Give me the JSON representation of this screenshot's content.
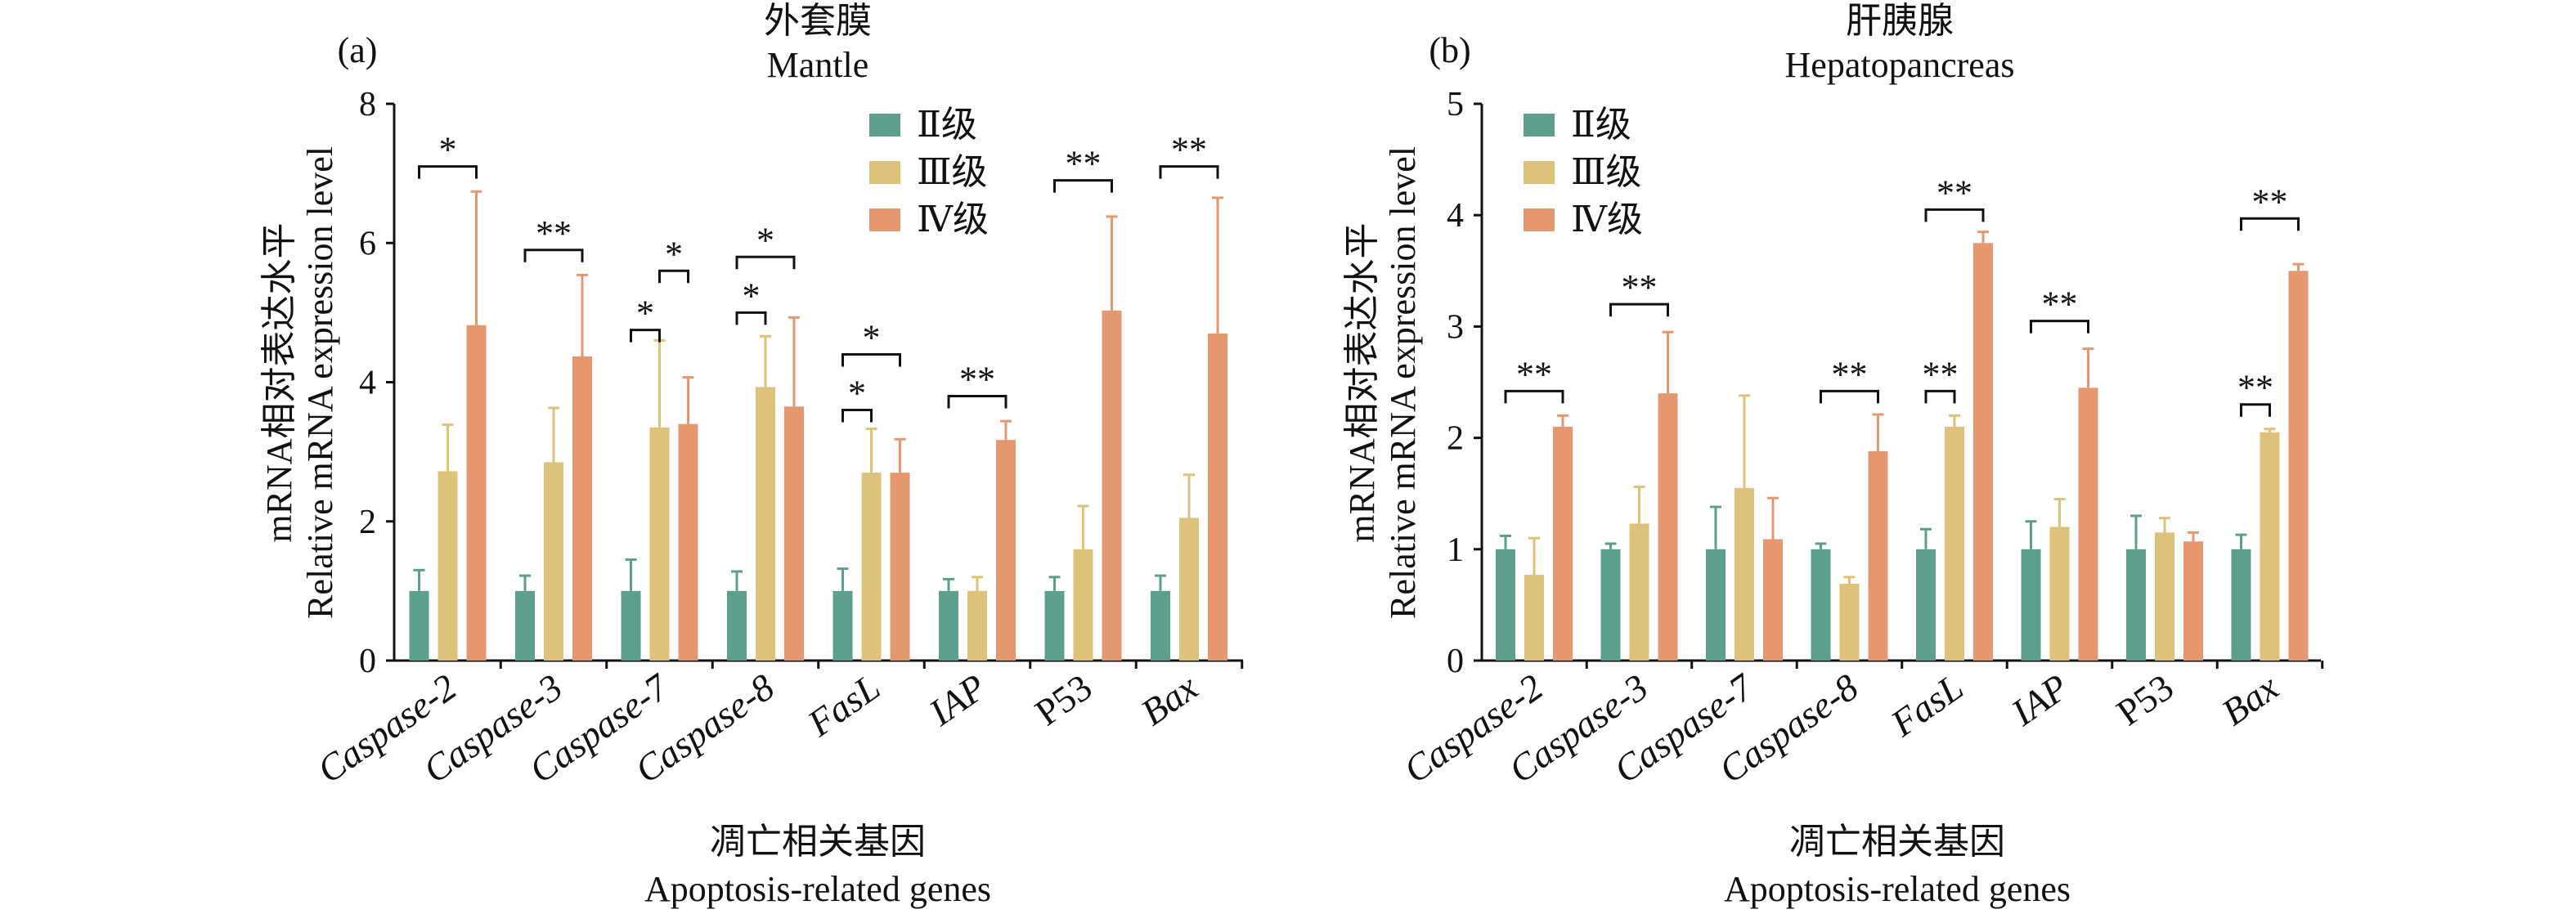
{
  "colors": {
    "grade2": "#5b9f8c",
    "grade3": "#dfc279",
    "grade4": "#e59870",
    "axis": "#111111"
  },
  "chart_data": [
    {
      "type": "bar",
      "panel_label": "(a)",
      "title": "外套膜",
      "subtitle": "Mantle",
      "xlabel_cn": "凋亡相关基因",
      "xlabel": "Apoptosis-related genes",
      "ylabel_cn": "mRNA相对表达水平",
      "ylabel": "Relative mRNA expression level",
      "ylim": [
        0,
        8
      ],
      "yticks": [
        0,
        2,
        4,
        6,
        8
      ],
      "legend_position": "top-right",
      "categories": [
        "Caspase-2",
        "Caspase-3",
        "Caspase-7",
        "Caspase-8",
        "FasL",
        "IAP",
        "P53",
        "Bax"
      ],
      "category_italic": [
        true,
        true,
        true,
        true,
        true,
        true,
        false,
        true
      ],
      "series": [
        {
          "name": "Ⅱ级",
          "values": [
            1,
            1,
            1,
            1,
            1,
            1,
            1,
            1
          ],
          "errors": [
            0.3,
            0.22,
            0.45,
            0.28,
            0.32,
            0.17,
            0.2,
            0.22
          ]
        },
        {
          "name": "Ⅲ级",
          "values": [
            2.72,
            2.85,
            3.35,
            3.93,
            2.7,
            1.0,
            1.6,
            2.05
          ],
          "errors": [
            0.67,
            0.78,
            1.25,
            0.73,
            0.63,
            0.2,
            0.62,
            0.62
          ]
        },
        {
          "name": "Ⅳ级",
          "values": [
            4.82,
            4.37,
            3.4,
            3.65,
            2.7,
            3.17,
            5.03,
            4.7
          ],
          "errors": [
            1.92,
            1.17,
            0.67,
            1.28,
            0.48,
            0.27,
            1.35,
            1.95
          ]
        }
      ],
      "significance": [
        {
          "category": 0,
          "from": 0,
          "to": 2,
          "label": "*",
          "y": 7.1
        },
        {
          "category": 1,
          "from": 0,
          "to": 2,
          "label": "**",
          "y": 5.9
        },
        {
          "category": 2,
          "from": 1,
          "to": 2,
          "label": "*",
          "y": 5.6
        },
        {
          "category": 2,
          "from": 0,
          "to": 1,
          "label": "*",
          "y": 4.75
        },
        {
          "category": 3,
          "from": 0,
          "to": 2,
          "label": "*",
          "y": 5.8
        },
        {
          "category": 3,
          "from": 0,
          "to": 1,
          "label": "*",
          "y": 5.0
        },
        {
          "category": 4,
          "from": 0,
          "to": 2,
          "label": "*",
          "y": 4.4
        },
        {
          "category": 4,
          "from": 0,
          "to": 1,
          "label": "*",
          "y": 3.6
        },
        {
          "category": 5,
          "from": 0,
          "to": 2,
          "label": "**",
          "y": 3.8
        },
        {
          "category": 6,
          "from": 0,
          "to": 2,
          "label": "**",
          "y": 6.9
        },
        {
          "category": 7,
          "from": 0,
          "to": 2,
          "label": "**",
          "y": 7.1
        }
      ]
    },
    {
      "type": "bar",
      "panel_label": "(b)",
      "title": "肝胰腺",
      "subtitle": "Hepatopancreas",
      "xlabel_cn": "凋亡相关基因",
      "xlabel": "Apoptosis-related genes",
      "ylabel_cn": "mRNA相对表达水平",
      "ylabel": "Relative mRNA expression level",
      "ylim": [
        0,
        5
      ],
      "yticks": [
        0,
        1,
        2,
        3,
        4,
        5
      ],
      "legend_position": "top-left",
      "categories": [
        "Caspase-2",
        "Caspase-3",
        "Caspase-7",
        "Caspase-8",
        "FasL",
        "IAP",
        "P53",
        "Bax"
      ],
      "category_italic": [
        true,
        true,
        true,
        true,
        true,
        true,
        false,
        true
      ],
      "series": [
        {
          "name": "Ⅱ级",
          "values": [
            1,
            1,
            1,
            1,
            1,
            1,
            1,
            1
          ],
          "errors": [
            0.12,
            0.05,
            0.38,
            0.05,
            0.18,
            0.25,
            0.3,
            0.13
          ]
        },
        {
          "name": "Ⅲ级",
          "values": [
            0.77,
            1.23,
            1.55,
            0.69,
            2.1,
            1.2,
            1.15,
            2.05
          ],
          "errors": [
            0.33,
            0.33,
            0.83,
            0.06,
            0.1,
            0.25,
            0.13,
            0.03
          ]
        },
        {
          "name": "Ⅳ级",
          "values": [
            2.1,
            2.4,
            1.09,
            1.88,
            3.75,
            2.45,
            1.07,
            3.5
          ],
          "errors": [
            0.1,
            0.55,
            0.37,
            0.33,
            0.1,
            0.35,
            0.08,
            0.06
          ]
        }
      ],
      "significance": [
        {
          "category": 0,
          "from": 0,
          "to": 2,
          "label": "**",
          "y": 2.42
        },
        {
          "category": 1,
          "from": 0,
          "to": 2,
          "label": "**",
          "y": 3.2
        },
        {
          "category": 3,
          "from": 0,
          "to": 2,
          "label": "**",
          "y": 2.42
        },
        {
          "category": 4,
          "from": 0,
          "to": 2,
          "label": "**",
          "y": 4.05
        },
        {
          "category": 4,
          "from": 0,
          "to": 1,
          "label": "**",
          "y": 2.42
        },
        {
          "category": 5,
          "from": 0,
          "to": 2,
          "label": "**",
          "y": 3.05
        },
        {
          "category": 7,
          "from": 0,
          "to": 2,
          "label": "**",
          "y": 3.97
        },
        {
          "category": 7,
          "from": 0,
          "to": 1,
          "label": "**",
          "y": 2.3
        }
      ]
    }
  ]
}
